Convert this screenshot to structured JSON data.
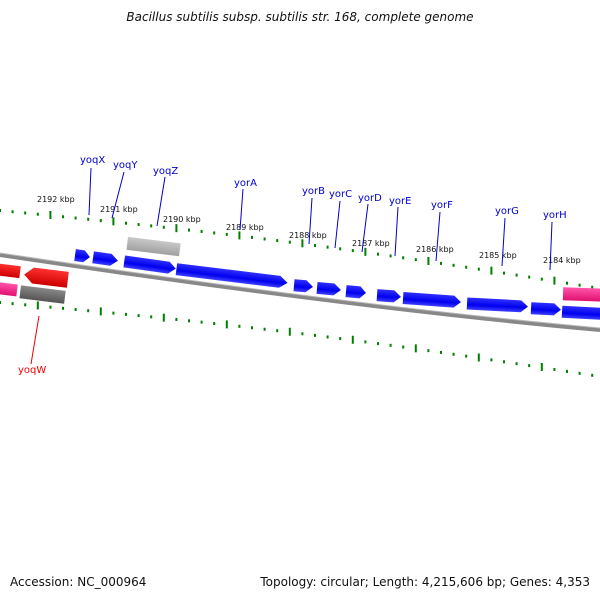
{
  "header": {
    "title": "Bacillus subtilis subsp. subtilis str. 168, complete genome"
  },
  "footer": {
    "accession": "Accession: NC_000964",
    "summary": "Topology: circular; Length: 4,215,606 bp; Genes: 4,353"
  },
  "colors": {
    "forward_gene": "#0000ee",
    "label_forward": "#0000cc",
    "label_reverse": "#ee0000",
    "tick": "#008000",
    "backbone": "#808080",
    "gene_red": "#ee0000",
    "gene_pink": "#ff1493",
    "gene_gray": "#b0b0b0",
    "gene_darkgray": "#707070"
  },
  "ruler": {
    "labels": [
      "2192 kbp",
      "2191 kbp",
      "2190 kbp",
      "2189 kbp",
      "2188 kbp",
      "2187 kbp",
      "2186 kbp",
      "2185 kbp",
      "2184 kbp"
    ]
  },
  "genes": {
    "forward_labels": [
      "yoqX",
      "yoqY",
      "yoqZ",
      "yorA",
      "yorB",
      "yorC",
      "yorD",
      "yorE",
      "yorF",
      "yorG",
      "yorH"
    ],
    "reverse_labels": [
      "yoqW"
    ]
  }
}
